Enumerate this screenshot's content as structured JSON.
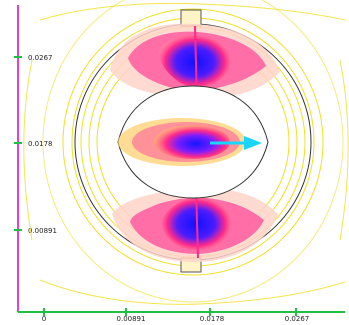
{
  "viewer": {
    "y_axis": {
      "tick_labels": [
        "0.0267",
        "0.0178",
        "0.00891"
      ],
      "line_color": "#e040e0"
    },
    "x_axis": {
      "tick_labels": [
        "0",
        "0.00891",
        "0.0178",
        "0.0267"
      ],
      "line_color": "#20c040"
    },
    "colors": {
      "contour_yellow": "#f0e020",
      "density_high": "#1a1aff",
      "density_mid": "#ff2a8a",
      "density_low": "#ff7a5a",
      "arrow": "#1ad6ff",
      "outline": "#333333"
    }
  }
}
